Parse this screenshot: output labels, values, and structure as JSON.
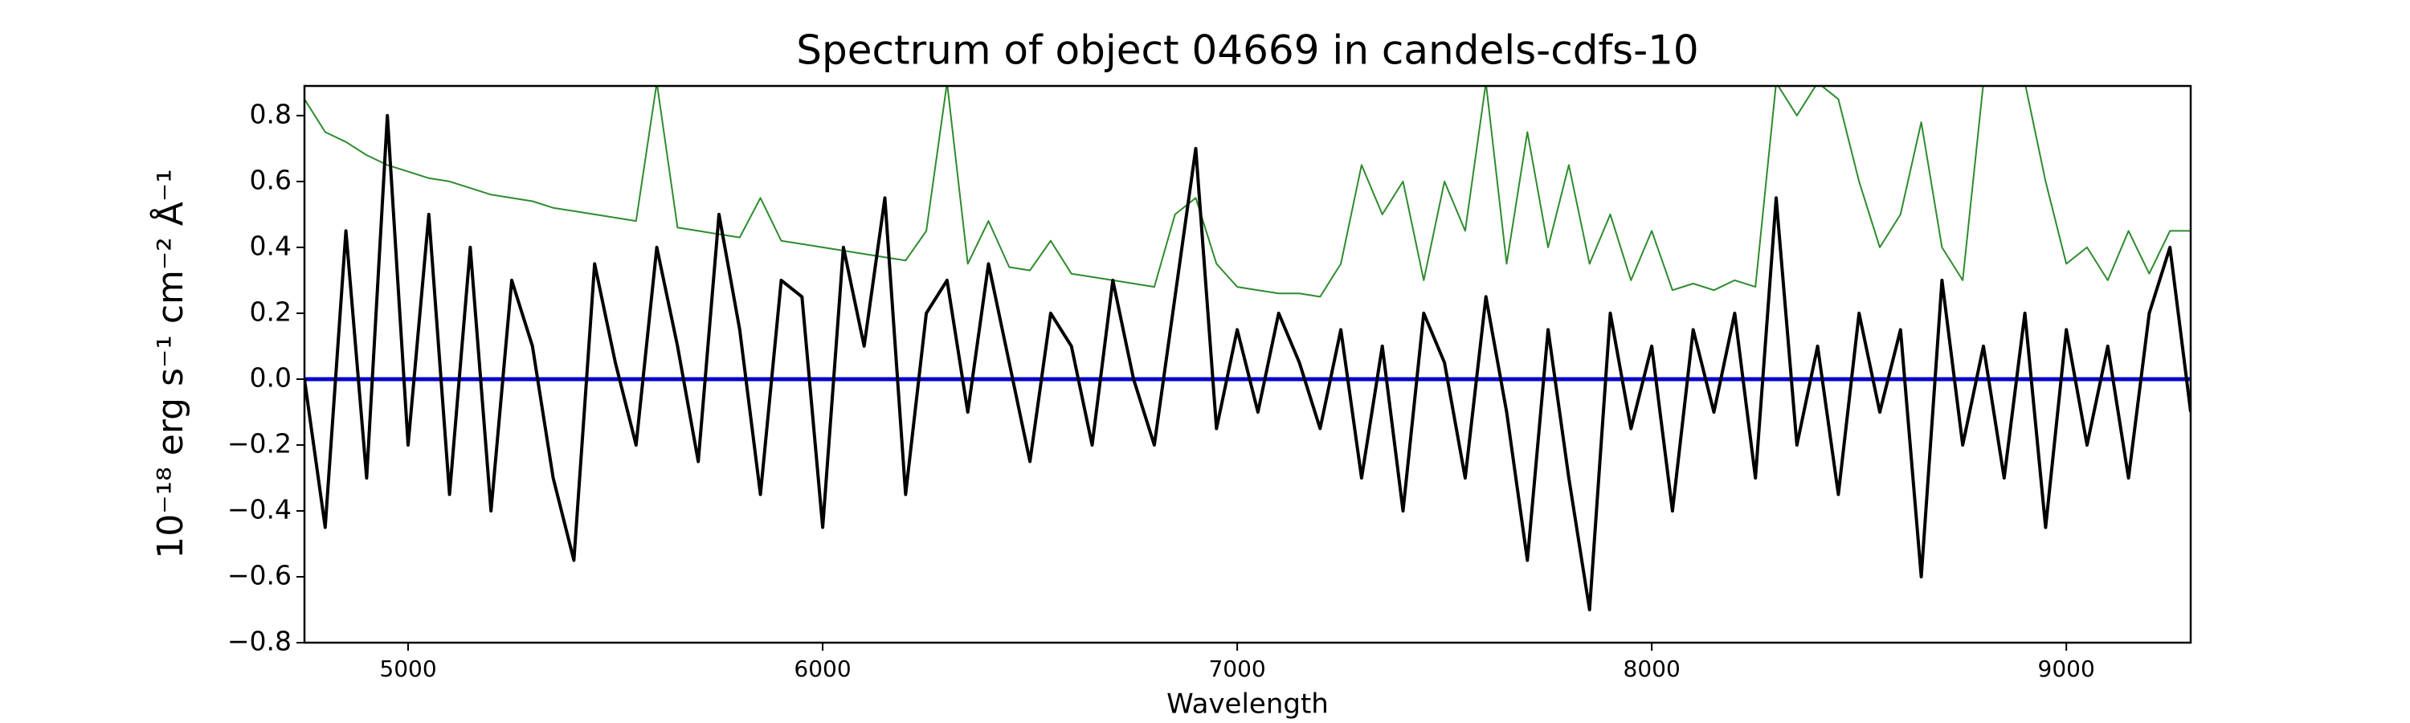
{
  "chart_data": {
    "type": "line",
    "title": "Spectrum of object 04669 in candels-cdfs-10",
    "xlabel": "Wavelength",
    "ylabel": "10⁻¹⁸ erg s⁻¹ cm⁻² Å⁻¹",
    "xlim": [
      4750,
      9300
    ],
    "ylim": [
      -0.8,
      0.89
    ],
    "xticks": [
      5000,
      6000,
      7000,
      8000,
      9000
    ],
    "yticks": [
      {
        "value": -0.8,
        "label": "−0.8"
      },
      {
        "value": -0.6,
        "label": "−0.6"
      },
      {
        "value": -0.4,
        "label": "−0.4"
      },
      {
        "value": -0.2,
        "label": "−0.2"
      },
      {
        "value": 0,
        "label": "0.0"
      },
      {
        "value": 0.2,
        "label": "0.2"
      },
      {
        "value": 0.4,
        "label": "0.4"
      },
      {
        "value": 0.6,
        "label": "0.6"
      },
      {
        "value": 0.8,
        "label": "0.8"
      }
    ],
    "x": [
      4750,
      4800,
      4850,
      4900,
      4950,
      5000,
      5050,
      5100,
      5150,
      5200,
      5250,
      5300,
      5350,
      5400,
      5450,
      5500,
      5550,
      5600,
      5650,
      5700,
      5750,
      5800,
      5850,
      5900,
      5950,
      6000,
      6050,
      6100,
      6150,
      6200,
      6250,
      6300,
      6350,
      6400,
      6450,
      6500,
      6550,
      6600,
      6650,
      6700,
      6750,
      6800,
      6850,
      6900,
      6950,
      7000,
      7050,
      7100,
      7150,
      7200,
      7250,
      7300,
      7350,
      7400,
      7450,
      7500,
      7550,
      7600,
      7650,
      7700,
      7750,
      7800,
      7850,
      7900,
      7950,
      8000,
      8050,
      8100,
      8150,
      8200,
      8250,
      8300,
      8350,
      8400,
      8450,
      8500,
      8550,
      8600,
      8650,
      8700,
      8750,
      8800,
      8850,
      8900,
      8950,
      9000,
      9050,
      9100,
      9150,
      9200,
      9250,
      9300
    ],
    "series": [
      {
        "color": "#2e8b2e",
        "width": 2,
        "values": [
          0.85,
          0.75,
          0.72,
          0.68,
          0.65,
          0.63,
          0.61,
          0.6,
          0.58,
          0.56,
          0.55,
          0.54,
          0.52,
          0.51,
          0.5,
          0.49,
          0.48,
          0.9,
          0.46,
          0.45,
          0.44,
          0.43,
          0.55,
          0.42,
          0.41,
          0.4,
          0.39,
          0.38,
          0.37,
          0.36,
          0.45,
          0.9,
          0.35,
          0.48,
          0.34,
          0.33,
          0.42,
          0.32,
          0.31,
          0.3,
          0.29,
          0.28,
          0.5,
          0.55,
          0.35,
          0.28,
          0.27,
          0.26,
          0.26,
          0.25,
          0.35,
          0.65,
          0.5,
          0.6,
          0.3,
          0.6,
          0.45,
          0.9,
          0.35,
          0.75,
          0.4,
          0.65,
          0.35,
          0.5,
          0.3,
          0.45,
          0.27,
          0.29,
          0.27,
          0.3,
          0.28,
          0.9,
          0.8,
          0.9,
          0.85,
          0.6,
          0.4,
          0.5,
          0.78,
          0.4,
          0.3,
          0.9,
          0.9,
          0.9,
          0.6,
          0.35,
          0.4,
          0.3,
          0.45,
          0.32,
          0.45,
          0.45
        ]
      },
      {
        "color": "#0000cc",
        "width": 5,
        "values": [
          0,
          0,
          0,
          0,
          0,
          0,
          0,
          0,
          0,
          0,
          0,
          0,
          0,
          0,
          0,
          0,
          0,
          0,
          0,
          0,
          0,
          0,
          0,
          0,
          0,
          0,
          0,
          0,
          0,
          0,
          0,
          0,
          0,
          0,
          0,
          0,
          0,
          0,
          0,
          0,
          0,
          0,
          0,
          0,
          0,
          0,
          0,
          0,
          0,
          0,
          0,
          0,
          0,
          0,
          0,
          0,
          0,
          0,
          0,
          0,
          0,
          0,
          0,
          0,
          0,
          0,
          0,
          0,
          0,
          0,
          0,
          0,
          0,
          0,
          0,
          0,
          0,
          0,
          0,
          0,
          0,
          0,
          0,
          0,
          0,
          0,
          0,
          0,
          0,
          0,
          0,
          0
        ]
      },
      {
        "color": "#000000",
        "width": 4,
        "values": [
          0.0,
          -0.45,
          0.45,
          -0.3,
          0.8,
          -0.2,
          0.5,
          -0.35,
          0.4,
          -0.4,
          0.3,
          0.1,
          -0.3,
          -0.55,
          0.35,
          0.05,
          -0.2,
          0.4,
          0.1,
          -0.25,
          0.5,
          0.15,
          -0.35,
          0.3,
          0.25,
          -0.45,
          0.4,
          0.1,
          0.55,
          -0.35,
          0.2,
          0.3,
          -0.1,
          0.35,
          0.05,
          -0.25,
          0.2,
          0.1,
          -0.2,
          0.3,
          0.0,
          -0.2,
          0.25,
          0.7,
          -0.15,
          0.15,
          -0.1,
          0.2,
          0.05,
          -0.15,
          0.15,
          -0.3,
          0.1,
          -0.4,
          0.2,
          0.05,
          -0.3,
          0.25,
          -0.1,
          -0.55,
          0.15,
          -0.3,
          -0.7,
          0.2,
          -0.15,
          0.1,
          -0.4,
          0.15,
          -0.1,
          0.2,
          -0.3,
          0.55,
          -0.2,
          0.1,
          -0.35,
          0.2,
          -0.1,
          0.15,
          -0.6,
          0.3,
          -0.2,
          0.1,
          -0.3,
          0.2,
          -0.45,
          0.15,
          -0.2,
          0.1,
          -0.3,
          0.2,
          0.4,
          -0.1
        ]
      }
    ]
  }
}
